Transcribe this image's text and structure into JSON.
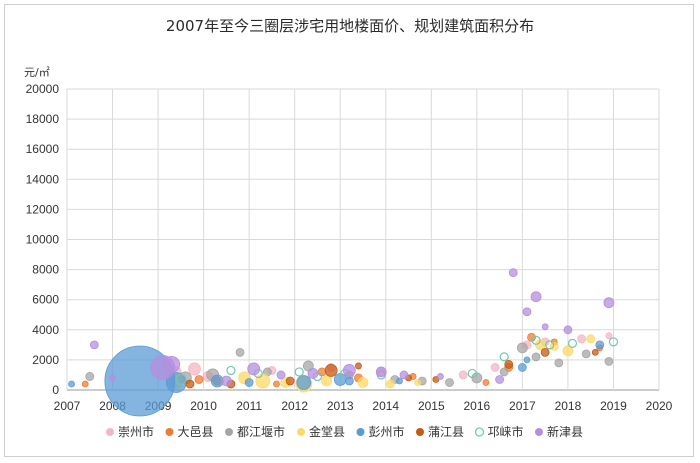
{
  "chart_data": {
    "type": "scatter",
    "title": "2007年至今三圈层涉宅用地楼面价、规划建筑面积分布",
    "ylabel": "元/㎡",
    "xlabel": "",
    "xlim": [
      2007,
      2020
    ],
    "ylim": [
      0,
      20000
    ],
    "x_ticks": [
      "2007",
      "2008",
      "2009",
      "2010",
      "2011",
      "2012",
      "2013",
      "2014",
      "2015",
      "2016",
      "2017",
      "2018",
      "2019",
      "2020"
    ],
    "y_ticks": [
      "0",
      "2000",
      "4000",
      "6000",
      "8000",
      "10000",
      "12000",
      "14000",
      "16000",
      "18000",
      "20000"
    ],
    "grid": true,
    "legend_position": "bottom",
    "series": [
      {
        "name": "崇州市",
        "color": "#f4b6c2",
        "hollow": false,
        "points": [
          [
            2009.4,
            1200,
            5
          ],
          [
            2009.8,
            1400,
            6
          ],
          [
            2010.1,
            900,
            5
          ],
          [
            2011.5,
            1300,
            4
          ],
          [
            2012.8,
            1500,
            4
          ],
          [
            2013.9,
            1200,
            4
          ],
          [
            2015.7,
            1000,
            4
          ],
          [
            2016.4,
            1500,
            4
          ],
          [
            2017.1,
            3000,
            4
          ],
          [
            2017.5,
            3200,
            4
          ],
          [
            2018.3,
            3400,
            4
          ],
          [
            2018.9,
            3600,
            3
          ]
        ]
      },
      {
        "name": "大邑县",
        "color": "#ed7d31",
        "hollow": false,
        "points": [
          [
            2007.4,
            400,
            3
          ],
          [
            2009.9,
            700,
            4
          ],
          [
            2010.3,
            600,
            4
          ],
          [
            2011.6,
            400,
            3
          ],
          [
            2012.6,
            1200,
            4
          ],
          [
            2013.4,
            800,
            4
          ],
          [
            2014.6,
            900,
            3
          ],
          [
            2016.2,
            500,
            3
          ],
          [
            2016.7,
            1500,
            4
          ],
          [
            2017.2,
            3500,
            4
          ],
          [
            2017.7,
            3200,
            3
          ],
          [
            2018.7,
            2800,
            3
          ]
        ]
      },
      {
        "name": "都江堰市",
        "color": "#a5a5a5",
        "hollow": false,
        "points": [
          [
            2007.5,
            900,
            4
          ],
          [
            2009.6,
            800,
            6
          ],
          [
            2010.2,
            1000,
            6
          ],
          [
            2010.8,
            2500,
            4
          ],
          [
            2011.4,
            1200,
            4
          ],
          [
            2012.3,
            1600,
            5
          ],
          [
            2013.2,
            1000,
            4
          ],
          [
            2014.2,
            700,
            4
          ],
          [
            2014.8,
            600,
            4
          ],
          [
            2015.4,
            500,
            4
          ],
          [
            2016.0,
            800,
            5
          ],
          [
            2016.6,
            1200,
            4
          ],
          [
            2017.0,
            2800,
            5
          ],
          [
            2017.3,
            2200,
            4
          ],
          [
            2017.8,
            1800,
            4
          ],
          [
            2018.4,
            2400,
            4
          ],
          [
            2018.9,
            1900,
            4
          ]
        ]
      },
      {
        "name": "金堂县",
        "color": "#ffd966",
        "hollow": false,
        "points": [
          [
            2009.4,
            600,
            7
          ],
          [
            2010.9,
            800,
            6
          ],
          [
            2011.3,
            600,
            7
          ],
          [
            2011.8,
            500,
            5
          ],
          [
            2012.2,
            400,
            8
          ],
          [
            2012.7,
            600,
            5
          ],
          [
            2013.5,
            500,
            5
          ],
          [
            2014.1,
            400,
            4
          ],
          [
            2014.7,
            500,
            3
          ],
          [
            2017.4,
            3000,
            5
          ],
          [
            2017.7,
            2900,
            4
          ],
          [
            2018.0,
            2600,
            5
          ],
          [
            2018.5,
            3400,
            4
          ]
        ]
      },
      {
        "name": "彭州市",
        "color": "#5b9bd5",
        "hollow": false,
        "points": [
          [
            2007.1,
            400,
            3
          ],
          [
            2008.6,
            600,
            35
          ],
          [
            2009.4,
            500,
            10
          ],
          [
            2010.3,
            600,
            6
          ],
          [
            2011.0,
            500,
            4
          ],
          [
            2012.2,
            500,
            7
          ],
          [
            2013.0,
            700,
            6
          ],
          [
            2013.2,
            600,
            4
          ],
          [
            2014.3,
            600,
            3
          ],
          [
            2017.0,
            1500,
            4
          ],
          [
            2017.1,
            2000,
            3
          ],
          [
            2018.7,
            3000,
            4
          ]
        ]
      },
      {
        "name": "蒲江县",
        "color": "#c55a11",
        "hollow": false,
        "points": [
          [
            2009.7,
            400,
            4
          ],
          [
            2010.6,
            400,
            4
          ],
          [
            2011.9,
            600,
            4
          ],
          [
            2012.8,
            1300,
            6
          ],
          [
            2013.4,
            1600,
            3
          ],
          [
            2014.5,
            800,
            3
          ],
          [
            2015.1,
            700,
            3
          ],
          [
            2016.7,
            1700,
            4
          ],
          [
            2017.5,
            2500,
            4
          ],
          [
            2018.6,
            2500,
            3
          ]
        ]
      },
      {
        "name": "邛崃市",
        "color": "#6fc9ad",
        "hollow": true,
        "points": [
          [
            2009.5,
            700,
            5
          ],
          [
            2010.6,
            1300,
            4
          ],
          [
            2011.2,
            1100,
            4
          ],
          [
            2012.1,
            1200,
            4
          ],
          [
            2012.5,
            900,
            4
          ],
          [
            2013.1,
            1100,
            4
          ],
          [
            2013.9,
            1000,
            4
          ],
          [
            2015.9,
            1100,
            4
          ],
          [
            2016.6,
            2200,
            4
          ],
          [
            2017.3,
            3300,
            4
          ],
          [
            2017.6,
            3000,
            4
          ],
          [
            2018.1,
            3100,
            4
          ],
          [
            2019.0,
            3200,
            4
          ]
        ]
      },
      {
        "name": "新津县",
        "color": "#b48fe0",
        "hollow": false,
        "points": [
          [
            2007.6,
            3000,
            4
          ],
          [
            2008.0,
            800,
            3
          ],
          [
            2009.1,
            1500,
            12
          ],
          [
            2009.3,
            1700,
            8
          ],
          [
            2010.5,
            600,
            5
          ],
          [
            2011.1,
            1400,
            6
          ],
          [
            2011.7,
            1000,
            4
          ],
          [
            2012.4,
            1100,
            5
          ],
          [
            2013.2,
            1300,
            6
          ],
          [
            2013.9,
            1200,
            5
          ],
          [
            2014.4,
            1000,
            4
          ],
          [
            2015.2,
            900,
            3
          ],
          [
            2016.5,
            700,
            4
          ],
          [
            2016.8,
            7800,
            4
          ],
          [
            2017.1,
            5200,
            4
          ],
          [
            2017.3,
            6200,
            5
          ],
          [
            2018.0,
            4000,
            4
          ],
          [
            2018.9,
            5800,
            5
          ],
          [
            2017.5,
            4200,
            3
          ]
        ]
      }
    ]
  }
}
